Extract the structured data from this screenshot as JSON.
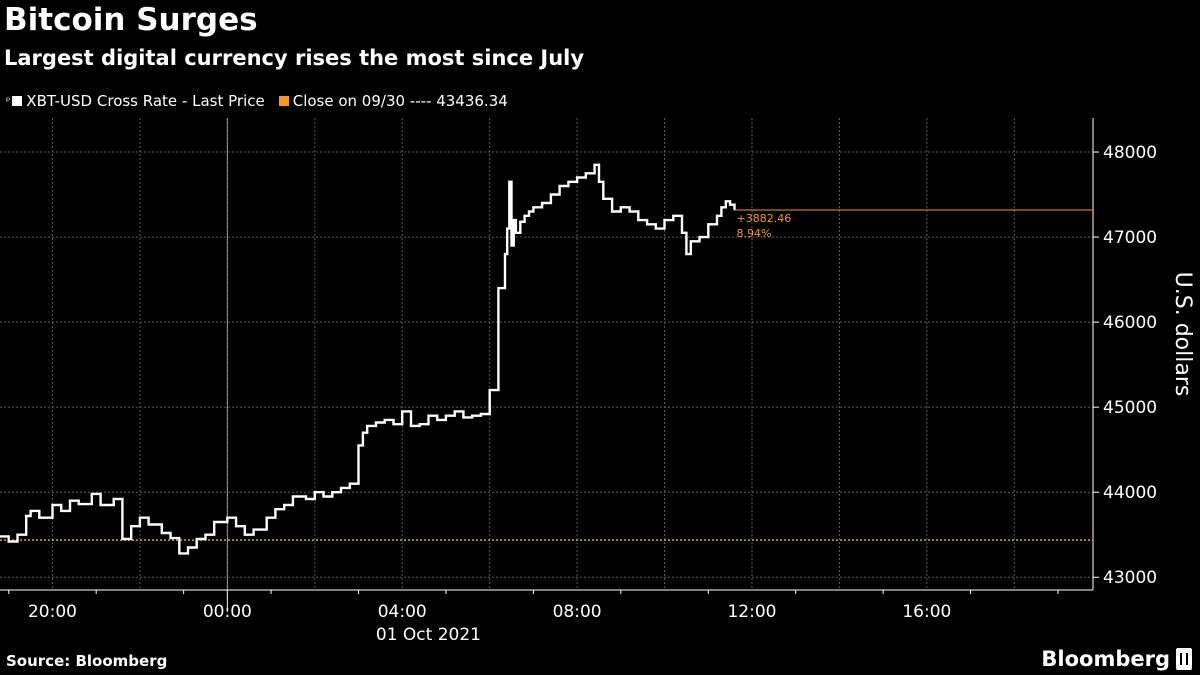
{
  "header": {
    "title": "Bitcoin Surges",
    "subtitle": "Largest digital currency rises the most since July"
  },
  "legend": {
    "series_label": "XBT-USD Cross Rate - Last Price",
    "close_label": "Close on 09/30 ---- 43436.34"
  },
  "footer": {
    "source": "Source: Bloomberg",
    "brand": "Bloomberg"
  },
  "colors": {
    "background": "#000000",
    "series": "#ffffff",
    "close_line": "#f39a1e",
    "grid": "#5a5a5a"
  },
  "icons": {
    "brand_logo": "bloomberg-terminal-icon"
  },
  "chart_data": {
    "type": "line",
    "title": "Bitcoin Surges",
    "subtitle": "Largest digital currency rises the most since July",
    "ylabel": "U.S. dollars",
    "ylim": [
      42850,
      48400
    ],
    "yticks": [
      43000,
      44000,
      45000,
      46000,
      47000,
      48000
    ],
    "xlim": [
      -5.2,
      19.8
    ],
    "xticks": [
      {
        "hour": -4,
        "label": "20:00"
      },
      {
        "hour": 0,
        "label": "00:00"
      },
      {
        "hour": 4,
        "label": "04:00"
      },
      {
        "hour": 8,
        "label": "08:00"
      },
      {
        "hour": 12,
        "label": "12:00"
      },
      {
        "hour": 16,
        "label": "16:00"
      }
    ],
    "date_label": "01 Oct 2021",
    "grid": true,
    "series": [
      {
        "name": "XBT-USD Cross Rate - Last Price",
        "x": [
          -5.2,
          -5.0,
          -4.8,
          -4.6,
          -4.5,
          -4.3,
          -4.0,
          -3.8,
          -3.6,
          -3.4,
          -3.1,
          -2.9,
          -2.6,
          -2.4,
          -2.2,
          -2.0,
          -1.8,
          -1.5,
          -1.3,
          -1.1,
          -0.9,
          -0.7,
          -0.5,
          -0.3,
          0.0,
          0.2,
          0.4,
          0.6,
          0.9,
          1.1,
          1.3,
          1.5,
          1.8,
          2.0,
          2.2,
          2.4,
          2.6,
          2.8,
          3.0,
          3.1,
          3.2,
          3.4,
          3.6,
          3.8,
          4.0,
          4.2,
          4.4,
          4.6,
          4.8,
          5.0,
          5.2,
          5.4,
          5.6,
          5.8,
          6.0,
          6.2,
          6.35,
          6.4,
          6.45,
          6.5,
          6.55,
          6.6,
          6.7,
          6.8,
          6.9,
          7.0,
          7.2,
          7.4,
          7.6,
          7.8,
          8.0,
          8.2,
          8.4,
          8.5,
          8.6,
          8.8,
          9.0,
          9.2,
          9.4,
          9.6,
          9.8,
          10.0,
          10.2,
          10.4,
          10.5,
          10.6,
          10.8,
          11.0,
          11.2,
          11.3,
          11.4,
          11.5,
          11.6
        ],
        "y": [
          43480,
          43420,
          43500,
          43720,
          43780,
          43700,
          43850,
          43780,
          43900,
          43860,
          43980,
          43850,
          43920,
          43450,
          43600,
          43700,
          43620,
          43520,
          43460,
          43280,
          43350,
          43450,
          43500,
          43650,
          43700,
          43600,
          43500,
          43560,
          43700,
          43800,
          43850,
          43950,
          43920,
          44000,
          43950,
          44000,
          44050,
          44100,
          44550,
          44700,
          44780,
          44820,
          44850,
          44800,
          44950,
          44780,
          44800,
          44900,
          44850,
          44900,
          44950,
          44880,
          44900,
          44920,
          45200,
          46400,
          46800,
          47100,
          47650,
          46900,
          47200,
          47050,
          47180,
          47250,
          47300,
          47350,
          47400,
          47500,
          47600,
          47650,
          47700,
          47750,
          47850,
          47650,
          47450,
          47300,
          47350,
          47300,
          47200,
          47150,
          47100,
          47200,
          47250,
          47050,
          46800,
          46950,
          47000,
          47150,
          47250,
          47350,
          47420,
          47380,
          47320
        ]
      },
      {
        "name": "Close on 09/30",
        "value": 43436.34
      }
    ],
    "annotations": {
      "last_value": 47318.8,
      "change_text": "+3882.46",
      "change_pct_text": "8.94%"
    }
  }
}
